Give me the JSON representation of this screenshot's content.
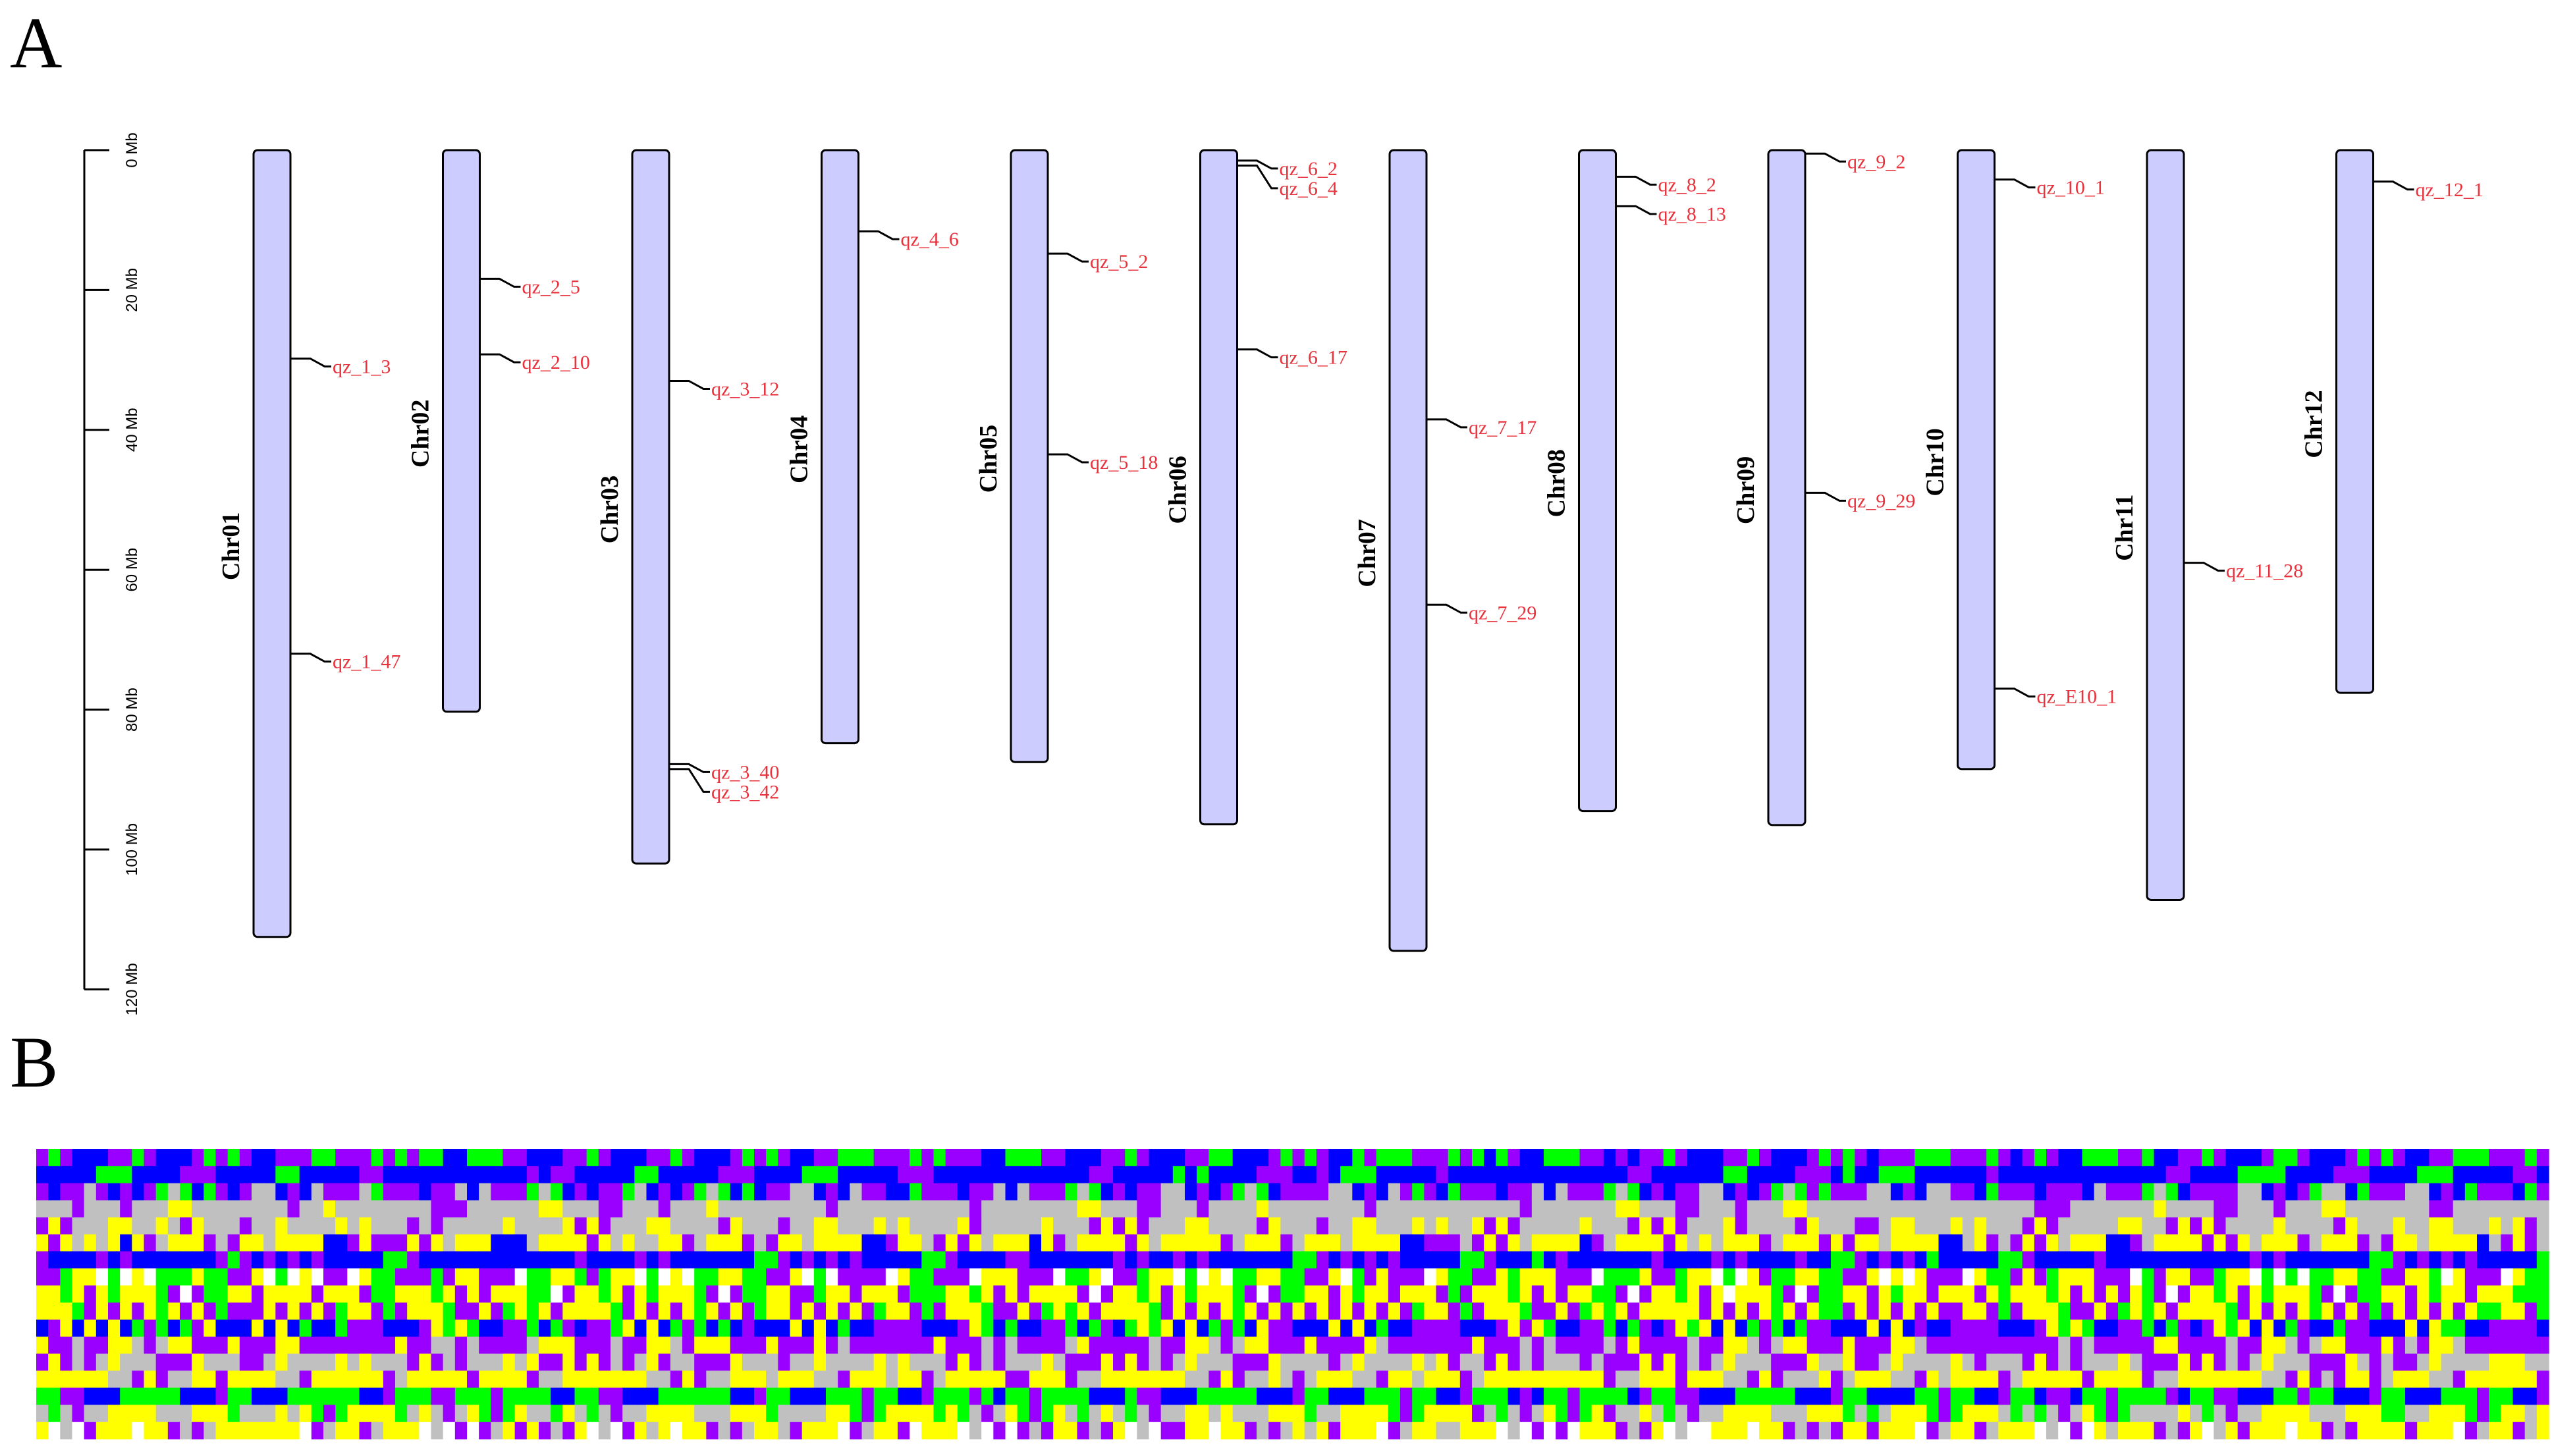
{
  "panels": {
    "a_label": "A",
    "b_label": "B"
  },
  "scale": {
    "unit": "Mb",
    "ticks": [
      {
        "value": 0,
        "label": "0 Mb"
      },
      {
        "value": 20,
        "label": "20 Mb"
      },
      {
        "value": 40,
        "label": "40 Mb"
      },
      {
        "value": 60,
        "label": "60 Mb"
      },
      {
        "value": 80,
        "label": "80 Mb"
      },
      {
        "value": 100,
        "label": "100 Mb"
      },
      {
        "value": 120,
        "label": "120 Mb"
      }
    ],
    "max": 120
  },
  "chromosomes": [
    {
      "name": "Chr01",
      "length_mb": 112.5,
      "qtls": [
        {
          "label": "qz_1_3",
          "pos": 29.8
        },
        {
          "label": "qz_1_47",
          "pos": 72.0
        }
      ]
    },
    {
      "name": "Chr02",
      "length_mb": 80.3,
      "qtls": [
        {
          "label": "qz_2_5",
          "pos": 18.4
        },
        {
          "label": "qz_2_10",
          "pos": 29.2
        }
      ]
    },
    {
      "name": "Chr03",
      "length_mb": 102.0,
      "qtls": [
        {
          "label": "qz_3_12",
          "pos": 33.0
        },
        {
          "label": "qz_3_40",
          "pos": 87.8
        },
        {
          "label": "qz_3_42",
          "pos": 88.5
        }
      ]
    },
    {
      "name": "Chr04",
      "length_mb": 84.8,
      "qtls": [
        {
          "label": "qz_4_6",
          "pos": 11.6
        }
      ]
    },
    {
      "name": "Chr05",
      "length_mb": 87.5,
      "qtls": [
        {
          "label": "qz_5_2",
          "pos": 14.8
        },
        {
          "label": "qz_5_18",
          "pos": 43.5
        }
      ]
    },
    {
      "name": "Chr06",
      "length_mb": 96.4,
      "qtls": [
        {
          "label": "qz_6_2",
          "pos": 1.5
        },
        {
          "label": "qz_6_4",
          "pos": 2.2
        },
        {
          "label": "qz_6_17",
          "pos": 28.5
        }
      ]
    },
    {
      "name": "Chr07",
      "length_mb": 114.5,
      "qtls": [
        {
          "label": "qz_7_17",
          "pos": 38.5
        },
        {
          "label": "qz_7_29",
          "pos": 65.0
        }
      ]
    },
    {
      "name": "Chr08",
      "length_mb": 94.5,
      "qtls": [
        {
          "label": "qz_8_2",
          "pos": 3.8
        },
        {
          "label": "qz_8_13",
          "pos": 8.0
        }
      ]
    },
    {
      "name": "Chr09",
      "length_mb": 96.5,
      "qtls": [
        {
          "label": "qz_9_2",
          "pos": 0.5
        },
        {
          "label": "qz_9_29",
          "pos": 49.0
        }
      ]
    },
    {
      "name": "Chr10",
      "length_mb": 88.5,
      "qtls": [
        {
          "label": "qz_10_1",
          "pos": 4.2
        },
        {
          "label": "qz_E10_1",
          "pos": 77.0
        }
      ]
    },
    {
      "name": "Chr11",
      "length_mb": 107.2,
      "qtls": [
        {
          "label": "qz_11_28",
          "pos": 59.0
        }
      ]
    },
    {
      "name": "Chr12",
      "length_mb": 77.6,
      "qtls": [
        {
          "label": "qz_12_1",
          "pos": 4.5
        }
      ]
    }
  ],
  "heatmap": {
    "colors": [
      "#0000ff",
      "#00ff00",
      "#9900ff",
      "#ffff00",
      "#c0c0c0",
      "#ffffff"
    ],
    "row_patterns": [
      [
        2,
        0,
        2,
        1,
        2,
        0,
        2,
        1,
        0,
        2,
        1,
        0,
        2,
        1,
        2,
        0,
        1,
        2,
        0,
        1
      ],
      [
        0,
        0,
        2,
        0,
        0,
        1,
        0,
        0,
        2,
        0,
        0,
        0,
        1,
        0,
        0,
        2,
        0,
        0,
        1,
        0
      ],
      [
        2,
        4,
        0,
        2,
        4,
        1,
        2,
        2,
        0,
        4,
        2,
        1,
        2,
        0,
        4,
        2,
        2,
        1,
        0,
        2
      ],
      [
        4,
        4,
        4,
        2,
        4,
        4,
        4,
        3,
        4,
        4,
        2,
        4,
        4,
        4,
        3,
        4,
        4,
        4,
        2,
        4
      ],
      [
        4,
        3,
        4,
        4,
        3,
        4,
        2,
        4,
        4,
        3,
        4,
        4,
        2,
        4,
        3,
        4,
        4,
        2,
        4,
        3
      ],
      [
        3,
        4,
        2,
        3,
        3,
        0,
        4,
        3,
        2,
        3,
        4,
        3,
        0,
        3,
        2,
        3,
        4,
        3,
        3,
        2
      ],
      [
        0,
        2,
        0,
        0,
        1,
        0,
        0,
        2,
        0,
        0,
        0,
        1,
        0,
        2,
        0,
        0,
        0,
        0,
        2,
        0
      ],
      [
        1,
        2,
        3,
        1,
        2,
        5,
        3,
        1,
        2,
        3,
        5,
        2,
        1,
        3,
        2,
        1,
        5,
        3,
        2,
        1
      ],
      [
        3,
        3,
        2,
        1,
        3,
        3,
        1,
        2,
        3,
        5,
        1,
        3,
        2,
        3,
        3,
        1,
        2,
        3,
        1,
        3
      ],
      [
        2,
        3,
        3,
        2,
        1,
        3,
        2,
        3,
        1,
        2,
        3,
        3,
        2,
        1,
        3,
        2,
        3,
        2,
        1,
        3
      ],
      [
        0,
        1,
        2,
        0,
        3,
        0,
        1,
        2,
        0,
        2,
        0,
        1,
        3,
        0,
        2,
        1,
        0,
        2,
        3,
        0
      ],
      [
        2,
        2,
        3,
        2,
        4,
        2,
        3,
        2,
        2,
        4,
        2,
        3,
        2,
        2,
        4,
        3,
        2,
        2,
        3,
        2
      ],
      [
        4,
        2,
        4,
        3,
        2,
        4,
        4,
        2,
        3,
        4,
        2,
        4,
        4,
        3,
        2,
        4,
        2,
        4,
        3,
        4
      ],
      [
        3,
        4,
        3,
        3,
        4,
        2,
        3,
        3,
        4,
        3,
        2,
        3,
        4,
        3,
        3,
        2,
        3,
        4,
        3,
        3
      ],
      [
        1,
        0,
        1,
        2,
        0,
        1,
        1,
        0,
        2,
        1,
        0,
        1,
        2,
        1,
        0,
        1,
        2,
        0,
        1,
        1
      ],
      [
        4,
        3,
        1,
        4,
        3,
        4,
        2,
        3,
        1,
        3,
        4,
        3,
        1,
        4,
        3,
        2,
        4,
        3,
        1,
        4
      ],
      [
        2,
        3,
        4,
        3,
        5,
        3,
        2,
        4,
        3,
        5,
        3,
        2,
        3,
        4,
        3,
        5,
        2,
        3,
        4,
        3
      ]
    ]
  }
}
